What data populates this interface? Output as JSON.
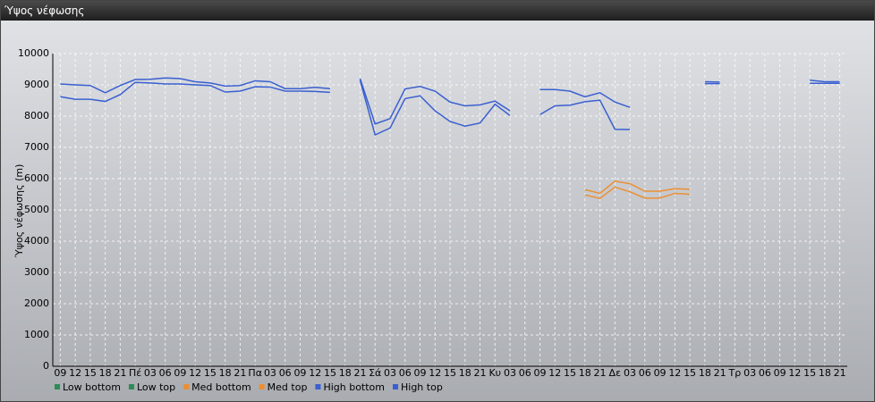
{
  "window_title": "Ύψος νέφωσης",
  "chart_data": {
    "type": "line",
    "y_label": "Ύψος νέφωσης (m)",
    "categories": [
      "09",
      "12",
      "15",
      "18",
      "21",
      "Πέ",
      "03",
      "06",
      "09",
      "12",
      "15",
      "18",
      "21",
      "Πα",
      "03",
      "06",
      "09",
      "12",
      "15",
      "18",
      "21",
      "Σά",
      "03",
      "06",
      "09",
      "12",
      "15",
      "18",
      "21",
      "Κυ",
      "03",
      "06",
      "09",
      "12",
      "15",
      "18",
      "21",
      "Δε",
      "03",
      "06",
      "09",
      "12",
      "15",
      "18",
      "21",
      "Τρ",
      "03",
      "06",
      "09",
      "12",
      "15",
      "18",
      "21"
    ],
    "ylim": [
      0,
      10000
    ],
    "yticks": [
      0,
      1000,
      2000,
      3000,
      4000,
      5000,
      6000,
      7000,
      8000,
      9000,
      10000
    ],
    "grid": true,
    "series": [
      {
        "name": "Low bottom",
        "color": "#2e8b57",
        "values": [
          null,
          null,
          null,
          null,
          null,
          null,
          null,
          null,
          null,
          null,
          null,
          null,
          null,
          null,
          null,
          null,
          null,
          null,
          null,
          null,
          null,
          null,
          null,
          null,
          null,
          null,
          null,
          null,
          null,
          null,
          null,
          null,
          null,
          null,
          null,
          null,
          null,
          null,
          null,
          null,
          null,
          null,
          null,
          null,
          null,
          null,
          null,
          null,
          null,
          null,
          null,
          null,
          null
        ]
      },
      {
        "name": "Low top",
        "color": "#2e8b57",
        "values": [
          null,
          null,
          null,
          null,
          null,
          null,
          null,
          null,
          null,
          null,
          null,
          null,
          null,
          null,
          null,
          null,
          null,
          null,
          null,
          null,
          null,
          null,
          null,
          null,
          null,
          null,
          null,
          null,
          null,
          null,
          null,
          null,
          null,
          null,
          null,
          null,
          null,
          null,
          null,
          null,
          null,
          null,
          null,
          null,
          null,
          null,
          null,
          null,
          null,
          null,
          null,
          null,
          null
        ]
      },
      {
        "name": "Med bottom",
        "color": "#ec8f32",
        "values": [
          null,
          null,
          null,
          null,
          null,
          null,
          null,
          null,
          null,
          null,
          null,
          null,
          null,
          null,
          null,
          null,
          null,
          null,
          null,
          null,
          null,
          null,
          null,
          null,
          null,
          null,
          null,
          null,
          null,
          null,
          null,
          null,
          null,
          null,
          null,
          5480,
          5370,
          5730,
          5580,
          5380,
          5380,
          5530,
          5500,
          null,
          null,
          null,
          null,
          null,
          null,
          null,
          null,
          null,
          null
        ]
      },
      {
        "name": "Med top",
        "color": "#ec8f32",
        "values": [
          null,
          null,
          null,
          null,
          null,
          null,
          null,
          null,
          null,
          null,
          null,
          null,
          null,
          null,
          null,
          null,
          null,
          null,
          null,
          null,
          null,
          null,
          null,
          null,
          null,
          null,
          null,
          null,
          null,
          null,
          null,
          null,
          null,
          null,
          null,
          5650,
          5530,
          5920,
          5840,
          5600,
          5600,
          5680,
          5660,
          null,
          null,
          null,
          null,
          null,
          null,
          null,
          null,
          null,
          null
        ]
      },
      {
        "name": "High bottom",
        "color": "#3a5fd0",
        "values": [
          8620,
          8540,
          8540,
          8470,
          8690,
          9080,
          9060,
          9030,
          9030,
          9000,
          8980,
          8770,
          8800,
          8940,
          8930,
          8800,
          8800,
          8790,
          8760,
          null,
          9150,
          7400,
          7620,
          8560,
          8650,
          8170,
          7830,
          7680,
          7780,
          8380,
          8020,
          null,
          8050,
          8330,
          8350,
          8460,
          8510,
          7580,
          7570,
          null,
          null,
          null,
          null,
          9040,
          9040,
          null,
          null,
          null,
          null,
          null,
          9050,
          9050,
          9050
        ]
      },
      {
        "name": "High top",
        "color": "#3a5fd0",
        "values": [
          9030,
          9000,
          8980,
          8750,
          8980,
          9170,
          9180,
          9220,
          9200,
          9100,
          9060,
          8960,
          8980,
          9130,
          9100,
          8880,
          8880,
          8920,
          8880,
          null,
          9200,
          7750,
          7920,
          8870,
          8950,
          8800,
          8450,
          8330,
          8360,
          8480,
          8170,
          null,
          8850,
          8850,
          8800,
          8620,
          8750,
          8450,
          8280,
          null,
          null,
          null,
          null,
          9100,
          9090,
          null,
          null,
          null,
          null,
          null,
          9150,
          9100,
          9100
        ]
      }
    ]
  }
}
